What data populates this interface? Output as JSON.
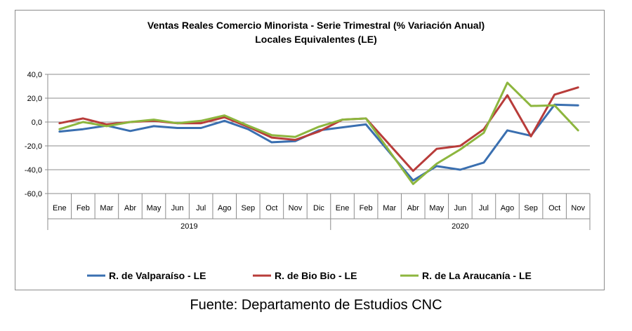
{
  "chart_data": {
    "type": "line",
    "title": "Ventas Reales Comercio Minorista - Serie Trimestral (% Variación Anual)",
    "subtitle": "Locales Equivalentes (LE)",
    "categories": [
      "Ene",
      "Feb",
      "Mar",
      "Abr",
      "May",
      "Jun",
      "Jul",
      "Ago",
      "Sep",
      "Oct",
      "Nov",
      "Dic",
      "Ene",
      "Feb",
      "Mar",
      "Abr",
      "May",
      "Jun",
      "Jul",
      "Ago",
      "Sep",
      "Oct",
      "Nov"
    ],
    "groups": [
      {
        "label": "2019",
        "count": 12
      },
      {
        "label": "2020",
        "count": 11
      }
    ],
    "y_ticks": [
      "40,0",
      "20,0",
      "0,0",
      "-20,0",
      "-40,0",
      "-60,0"
    ],
    "ylim": [
      -60,
      40
    ],
    "grid": true,
    "legend_position": "bottom",
    "series": [
      {
        "name": "R. de Valparaíso - LE",
        "color": "#3a6fb0",
        "values": [
          -8,
          -6,
          -3,
          -7.5,
          -3.5,
          -5,
          -5,
          1,
          -6,
          -17,
          -16,
          -7,
          -4.5,
          -2,
          null,
          -49,
          -37,
          -40,
          -34,
          -7,
          -11.5,
          14.5,
          14
        ]
      },
      {
        "name": "R. de Bio Bio - LE",
        "color": "#b83c3a",
        "values": [
          -1,
          3,
          -2,
          0,
          1,
          -1,
          -1,
          4,
          -4,
          -13,
          -15,
          -8,
          2,
          3,
          null,
          -41,
          -22.5,
          -20,
          -6,
          22.5,
          -12,
          23,
          29
        ]
      },
      {
        "name": "R. de La Araucanía - LE",
        "color": "#8db63e",
        "values": [
          -6,
          0,
          -3.5,
          0,
          2,
          -1,
          1,
          5.5,
          -3,
          -11,
          -12.5,
          -4,
          2,
          3,
          null,
          -52,
          -35,
          -23,
          -9,
          33,
          13.5,
          14,
          -7
        ]
      }
    ]
  },
  "source_text": "Fuente: Departamento de Estudios CNC"
}
